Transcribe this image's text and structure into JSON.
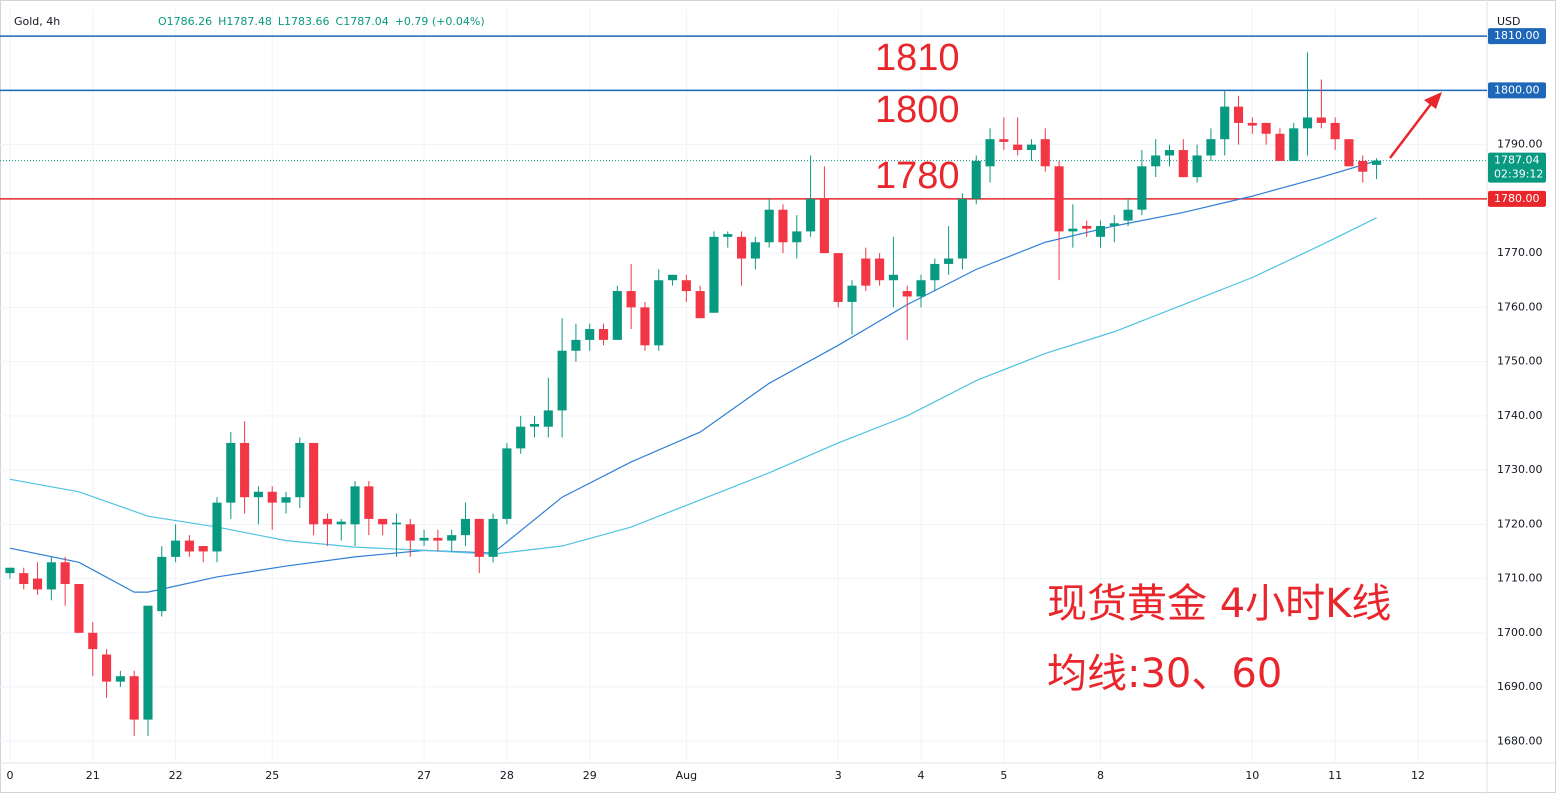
{
  "chart_data": {
    "type": "candlestick",
    "symbol": "Gold, 4h",
    "ohlc_text": [
      "O1786.26",
      "H1787.48",
      "L1783.66",
      "C1787.04",
      "+0.79 (+0.04%)"
    ],
    "currency": "USD",
    "up_color": "#089981",
    "down_color": "#f23645",
    "open": [
      1711,
      1711,
      1710,
      1708,
      1713,
      1709,
      1700,
      1696,
      1691,
      1692,
      1684,
      1704,
      1714,
      1717,
      1716,
      1715,
      1724,
      1735,
      1725,
      1726,
      1724,
      1725,
      1735,
      1721,
      1720,
      1720,
      1727,
      1721,
      1720,
      1720,
      1717,
      1717.5,
      1717,
      1718,
      1721,
      1714,
      1721,
      1734,
      1738,
      1738,
      1741,
      1752,
      1754,
      1756,
      1754,
      1763,
      1760,
      1753,
      1765,
      1765,
      1763,
      1759,
      1773,
      1773,
      1769,
      1772,
      1778,
      1772,
      1774,
      1780,
      1770,
      1761,
      1769,
      1769,
      1765,
      1763,
      1762,
      1765,
      1768,
      1769,
      1780,
      1786,
      1791,
      1790,
      1789,
      1791,
      1786,
      1774,
      1775,
      1773,
      1775,
      1776,
      1778,
      1786,
      1788,
      1789,
      1784,
      1788,
      1791,
      1797,
      1794,
      1794,
      1792,
      1787,
      1793,
      1795,
      1794,
      1791,
      1787,
      1786.26
    ],
    "high": [
      1712,
      1712,
      1713,
      1714,
      1714,
      1709,
      1702,
      1697,
      1693,
      1693,
      1705,
      1716,
      1720,
      1718,
      1716,
      1725,
      1737,
      1739,
      1727,
      1727,
      1726,
      1736,
      1735,
      1722,
      1721,
      1728,
      1728,
      1721,
      1722,
      1721,
      1719,
      1719,
      1719,
      1724,
      1721,
      1722,
      1735,
      1740,
      1740,
      1747,
      1758,
      1757,
      1757,
      1757,
      1764,
      1768,
      1761,
      1767,
      1766,
      1766,
      1764,
      1774,
      1774,
      1774,
      1773,
      1780,
      1779,
      1777,
      1788,
      1786,
      1770,
      1765,
      1771,
      1770,
      1773,
      1764,
      1766,
      1769,
      1775,
      1781,
      1788,
      1793,
      1795,
      1795,
      1791,
      1793,
      1787,
      1779,
      1776,
      1776,
      1777,
      1780,
      1789,
      1791,
      1790,
      1791,
      1790,
      1793,
      1800,
      1799,
      1795,
      1794,
      1793,
      1794,
      1807,
      1802,
      1795,
      1791,
      1788,
      1787.48
    ],
    "low": [
      1710,
      1708,
      1707,
      1706,
      1705,
      1700,
      1692,
      1688,
      1690,
      1681,
      1681,
      1703,
      1713,
      1714,
      1713,
      1713,
      1721,
      1722,
      1720,
      1719,
      1722,
      1723,
      1718,
      1716,
      1717,
      1716,
      1718,
      1718,
      1714,
      1714,
      1716,
      1715,
      1715,
      1716,
      1711,
      1713,
      1720,
      1733,
      1736,
      1736,
      1736,
      1750,
      1752,
      1753,
      1754,
      1756,
      1752,
      1752,
      1764,
      1761,
      1758,
      1759,
      1771,
      1764,
      1767,
      1771,
      1770,
      1769,
      1773,
      1770,
      1760,
      1755,
      1763,
      1764,
      1760,
      1754,
      1760,
      1763,
      1766,
      1767,
      1779,
      1783,
      1789,
      1788,
      1787,
      1785,
      1765,
      1771,
      1773,
      1771,
      1772,
      1775,
      1777,
      1784,
      1786,
      1784,
      1783,
      1787,
      1788,
      1790,
      1792,
      1790,
      1787,
      1787,
      1788,
      1793,
      1789,
      1786,
      1783,
      1783.66
    ],
    "close": [
      1712,
      1709,
      1708,
      1713,
      1709,
      1700,
      1697,
      1691,
      1692,
      1684,
      1705,
      1714,
      1717,
      1715,
      1715,
      1724,
      1735,
      1725,
      1726,
      1724,
      1725,
      1735,
      1720,
      1720,
      1720.5,
      1727,
      1721,
      1720,
      1720.3,
      1717,
      1717.5,
      1717,
      1718,
      1721,
      1714,
      1721,
      1734,
      1738,
      1738.5,
      1741,
      1752,
      1754,
      1756,
      1754,
      1763,
      1760,
      1753,
      1765,
      1766,
      1763,
      1758,
      1773,
      1773.5,
      1769,
      1772,
      1778,
      1772,
      1774,
      1780,
      1770,
      1761,
      1764,
      1764,
      1765,
      1766,
      1762,
      1765,
      1768,
      1769,
      1780,
      1787,
      1791,
      1790.5,
      1789,
      1790,
      1786,
      1774,
      1774.5,
      1774.5,
      1775,
      1775.5,
      1778,
      1786,
      1788,
      1789,
      1784,
      1788,
      1791,
      1797,
      1794,
      1793.5,
      1792,
      1787,
      1793,
      1795,
      1794,
      1791,
      1786,
      1785,
      1787.04
    ],
    "series": [
      {
        "color": "#2f7fd4",
        "x": [
          0,
          5,
          9,
          10,
          15,
          20,
          25,
          30,
          35,
          40,
          45,
          50,
          55,
          60,
          65,
          70,
          75,
          80,
          85,
          90,
          95,
          99
        ],
        "values": [
          1715.6,
          1713,
          1707.5,
          1707.5,
          1710.3,
          1712.3,
          1714,
          1715.2,
          1714.7,
          1725,
          1731.5,
          1737,
          1746,
          1753,
          1760.5,
          1767,
          1772,
          1775,
          1777.5,
          1780.5,
          1784,
          1787
        ]
      },
      {
        "color": "#4fc3e0",
        "x": [
          0,
          5,
          10,
          15,
          20,
          25,
          30,
          35,
          40,
          45,
          50,
          55,
          60,
          65,
          70,
          75,
          80,
          85,
          90,
          95,
          99
        ],
        "values": [
          1728.3,
          1726,
          1721.5,
          1719.5,
          1717,
          1715.8,
          1715.2,
          1714.5,
          1716,
          1719.5,
          1724.5,
          1729.5,
          1735,
          1740,
          1746.5,
          1751.5,
          1755.5,
          1760.5,
          1765.5,
          1771.5,
          1776.5
        ]
      }
    ],
    "xlim": [
      -0.72,
      107
    ],
    "xticks": [
      {
        "value": 0,
        "label": "0"
      },
      {
        "value": 6,
        "label": "21"
      },
      {
        "value": 12,
        "label": "22"
      },
      {
        "value": 19,
        "label": "25"
      },
      {
        "value": 30,
        "label": "27"
      },
      {
        "value": 36,
        "label": "28"
      },
      {
        "value": 42,
        "label": "29"
      },
      {
        "value": 49,
        "label": "Aug"
      },
      {
        "value": 60,
        "label": "3"
      },
      {
        "value": 66,
        "label": "4"
      },
      {
        "value": 72,
        "label": "5"
      },
      {
        "value": 79,
        "label": "8"
      },
      {
        "value": 90,
        "label": "10"
      },
      {
        "value": 96,
        "label": "11"
      },
      {
        "value": 102,
        "label": "12"
      }
    ],
    "ylim": [
      1676,
      1815
    ],
    "yticks": [
      {
        "value": 1680,
        "label": "1680.00"
      },
      {
        "value": 1690,
        "label": "1690.00"
      },
      {
        "value": 1700,
        "label": "1700.00"
      },
      {
        "value": 1710,
        "label": "1710.00"
      },
      {
        "value": 1720,
        "label": "1720.00"
      },
      {
        "value": 1730,
        "label": "1730.00"
      },
      {
        "value": 1740,
        "label": "1740.00"
      },
      {
        "value": 1750,
        "label": "1750.00"
      },
      {
        "value": 1760,
        "label": "1760.00"
      },
      {
        "value": 1770,
        "label": "1770.00"
      },
      {
        "value": 1780,
        "label": "1780.00"
      },
      {
        "value": 1790,
        "label": "1790.00"
      }
    ],
    "grid": true,
    "levels": [
      {
        "value": 1810,
        "label": "1810.00",
        "color": "#1e66b8"
      },
      {
        "value": 1800,
        "label": "1800.00",
        "color": "#1e66b8"
      },
      {
        "value": 1780,
        "label": "1780.00",
        "color": "#e8262b"
      }
    ],
    "last_price": {
      "value": 1787.04,
      "label": "1787.04",
      "countdown": "02:39:12"
    },
    "annotations": [
      "1810",
      "1800",
      "1780"
    ],
    "caption": [
      "现货黄金 4小时K线",
      "均线:30、60"
    ]
  }
}
